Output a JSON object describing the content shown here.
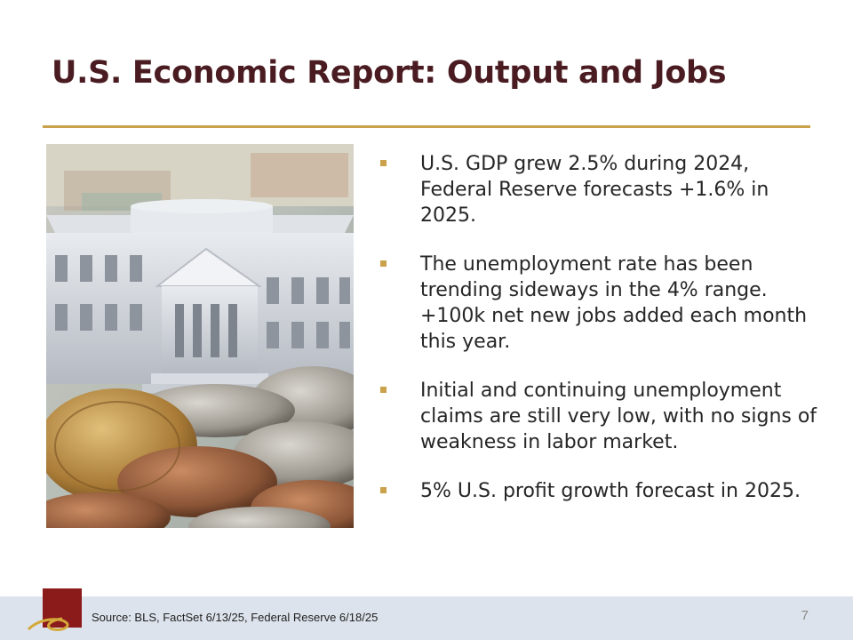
{
  "slide": {
    "title": "U.S. Economic Report: Output and Jobs",
    "photo_subject": "federal-reserve-building-on-coins",
    "bullets": [
      {
        "text": "U.S. GDP grew 2.5% during 2024, Federal Reserve forecasts +1.6% in 2025."
      },
      {
        "text": "The unemployment rate has been trending sideways in the 4% range. +100k net new jobs added each month this year."
      },
      {
        "text": "Initial and continuing unemployment claims are still very low, with no signs of weakness in labor market."
      },
      {
        "text": "5% U.S. profit growth forecast in 2025."
      }
    ]
  },
  "footer": {
    "source": "Source: BLS, FactSet 6/13/25, Federal Reserve 6/18/25",
    "page_number": "7"
  },
  "colors": {
    "title": "#4a1c22",
    "accent_gold": "#c9a24b",
    "logo_red": "#8b1a1a",
    "footer_band": "#dde3ec"
  }
}
